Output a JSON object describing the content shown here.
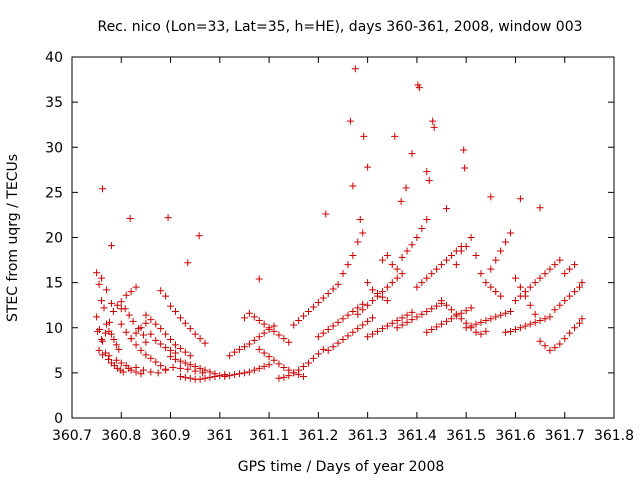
{
  "chart_data": {
    "type": "scatter",
    "title": "Rec. nico (Lon=33, Lat=35, h=HE), days 360-361, 2008, window 003",
    "xlabel": "GPS time / Days of year 2008",
    "ylabel": "STEC from uqrg / TECUs",
    "xlim": [
      360.7,
      361.8
    ],
    "ylim": [
      0,
      40
    ],
    "xticks": [
      "360.7",
      "360.8",
      "360.9",
      "361",
      "361.1",
      "361.2",
      "361.3",
      "361.4",
      "361.5",
      "361.6",
      "361.7",
      "361.8"
    ],
    "yticks": [
      "0",
      "5",
      "10",
      "15",
      "20",
      "25",
      "30",
      "35",
      "40"
    ],
    "marker": "plus",
    "grid": false,
    "color": "#cc0000",
    "x": [
      360.75,
      360.755,
      360.76,
      360.765,
      360.77,
      360.775,
      360.78,
      360.785,
      360.79,
      360.795,
      360.75,
      360.756,
      360.762,
      360.768,
      360.774,
      360.78,
      360.786,
      360.792,
      360.798,
      360.804,
      360.752,
      360.76,
      360.768,
      360.776,
      360.784,
      360.792,
      360.8,
      360.808,
      360.816,
      360.824,
      360.755,
      360.762,
      360.775,
      360.79,
      360.8,
      360.81,
      360.815,
      360.82,
      360.83,
      360.84,
      360.76,
      360.77,
      360.78,
      360.8,
      360.81,
      360.82,
      360.83,
      360.835,
      360.845,
      360.85,
      360.8,
      360.81,
      360.82,
      360.83,
      360.84,
      360.85,
      360.86,
      360.87,
      360.88,
      360.89,
      360.82,
      360.83,
      360.84,
      360.85,
      360.86,
      360.87,
      360.88,
      360.89,
      360.9,
      360.91,
      360.83,
      360.845,
      360.86,
      360.875,
      360.89,
      360.905,
      360.92,
      360.935,
      360.95,
      360.965,
      360.85,
      360.86,
      360.87,
      360.88,
      360.89,
      360.9,
      360.91,
      360.92,
      360.93,
      360.94,
      360.88,
      360.89,
      360.9,
      360.91,
      360.92,
      360.93,
      360.94,
      360.95,
      360.96,
      360.97,
      360.9,
      360.91,
      360.92,
      360.93,
      360.94,
      360.95,
      360.96,
      360.97,
      360.98,
      360.99,
      360.92,
      360.93,
      360.94,
      360.95,
      360.96,
      360.97,
      360.98,
      360.99,
      361.0,
      361.01,
      361.01,
      361.02,
      361.03,
      361.04,
      361.05,
      361.06,
      361.07,
      361.08,
      361.09,
      361.1,
      361.02,
      361.03,
      361.04,
      361.05,
      361.06,
      361.07,
      361.08,
      361.09,
      361.1,
      361.11,
      361.05,
      361.06,
      361.07,
      361.08,
      361.09,
      361.1,
      361.11,
      361.12,
      361.13,
      361.14,
      361.08,
      361.09,
      361.1,
      361.11,
      361.12,
      361.13,
      361.14,
      361.15,
      361.16,
      361.17,
      361.12,
      361.13,
      361.14,
      361.15,
      361.16,
      361.17,
      361.18,
      361.19,
      361.2,
      361.21,
      361.15,
      361.16,
      361.17,
      361.18,
      361.19,
      361.2,
      361.21,
      361.22,
      361.23,
      361.24,
      361.2,
      361.21,
      361.22,
      361.23,
      361.24,
      361.25,
      361.26,
      361.27,
      361.28,
      361.29,
      361.22,
      361.23,
      361.24,
      361.25,
      361.26,
      361.27,
      361.28,
      361.29,
      361.3,
      361.31,
      361.25,
      361.26,
      361.27,
      361.28,
      361.29,
      361.3,
      361.31,
      361.32,
      361.33,
      361.34,
      361.28,
      361.29,
      361.3,
      361.31,
      361.32,
      361.33,
      361.34,
      361.35,
      361.36,
      361.37,
      361.3,
      361.31,
      361.32,
      361.33,
      361.34,
      361.35,
      361.36,
      361.37,
      361.38,
      361.39,
      361.33,
      361.34,
      361.35,
      361.36,
      361.37,
      361.38,
      361.39,
      361.4,
      361.41,
      361.42,
      361.36,
      361.37,
      361.38,
      361.39,
      361.4,
      361.41,
      361.42,
      361.43,
      361.44,
      361.45,
      361.4,
      361.41,
      361.42,
      361.43,
      361.44,
      361.45,
      361.46,
      361.47,
      361.48,
      361.49,
      361.42,
      361.43,
      361.44,
      361.45,
      361.46,
      361.47,
      361.48,
      361.49,
      361.5,
      361.51,
      361.45,
      361.46,
      361.47,
      361.48,
      361.49,
      361.5,
      361.51,
      361.52,
      361.53,
      361.54,
      361.48,
      361.49,
      361.5,
      361.51,
      361.52,
      361.53,
      361.54,
      361.55,
      361.56,
      361.57,
      361.5,
      361.51,
      361.52,
      361.53,
      361.54,
      361.55,
      361.56,
      361.57,
      361.58,
      361.59,
      361.55,
      361.56,
      361.57,
      361.58,
      361.59,
      361.6,
      361.61,
      361.62,
      361.63,
      361.64,
      361.58,
      361.59,
      361.6,
      361.61,
      361.62,
      361.63,
      361.64,
      361.65,
      361.66,
      361.67,
      361.6,
      361.61,
      361.62,
      361.63,
      361.64,
      361.65,
      361.66,
      361.67,
      361.68,
      361.69,
      361.65,
      361.66,
      361.67,
      361.68,
      361.69,
      361.7,
      361.71,
      361.72,
      361.73,
      361.735,
      361.68,
      361.69,
      361.7,
      361.71,
      361.72,
      361.73,
      361.735,
      361.7,
      361.71,
      361.72,
      360.762,
      360.78,
      360.818,
      360.895,
      360.935,
      360.958,
      361.08,
      361.215,
      361.265,
      361.27,
      361.275,
      361.285,
      361.292,
      361.3,
      361.355,
      361.368,
      361.378,
      361.39,
      361.402,
      361.405,
      361.42,
      361.425,
      361.432,
      361.435,
      361.46,
      361.495,
      361.497,
      361.55,
      361.61,
      361.65
    ],
    "y": [
      16.1,
      14.8,
      13.0,
      12.2,
      10.4,
      9.6,
      9.3,
      8.7,
      8.1,
      7.6,
      11.2,
      9.8,
      8.5,
      7.2,
      6.5,
      6.1,
      5.8,
      5.5,
      5.3,
      5.1,
      9.6,
      8.7,
      9.4,
      10.6,
      11.8,
      12.5,
      12.9,
      12.1,
      11.4,
      10.7,
      7.5,
      7.0,
      6.9,
      6.4,
      6.1,
      5.8,
      5.5,
      5.3,
      5.1,
      4.9,
      15.5,
      14.2,
      12.7,
      12.1,
      13.6,
      14.0,
      14.5,
      9.9,
      9.2,
      8.4,
      10.4,
      9.5,
      8.8,
      8.1,
      7.5,
      7.0,
      6.6,
      6.2,
      5.8,
      5.4,
      8.8,
      9.4,
      10.0,
      10.5,
      9.3,
      8.6,
      8.2,
      7.8,
      7.5,
      7.2,
      5.6,
      5.3,
      5.1,
      5.0,
      5.3,
      5.6,
      5.5,
      5.4,
      5.2,
      5.0,
      11.4,
      10.9,
      10.4,
      9.9,
      9.3,
      8.7,
      8.1,
      7.7,
      7.3,
      6.9,
      14.1,
      13.5,
      12.4,
      11.8,
      11.1,
      10.5,
      9.9,
      9.3,
      8.8,
      8.3,
      6.8,
      6.5,
      6.3,
      6.1,
      5.9,
      5.7,
      5.5,
      5.3,
      5.1,
      4.9,
      4.6,
      4.5,
      4.4,
      4.3,
      4.3,
      4.4,
      4.5,
      4.6,
      4.7,
      4.8,
      4.6,
      4.7,
      4.8,
      4.9,
      5.0,
      5.1,
      5.3,
      5.5,
      5.7,
      5.9,
      6.9,
      7.3,
      7.6,
      7.9,
      8.2,
      8.6,
      9.0,
      9.4,
      9.8,
      10.2,
      11.1,
      11.6,
      11.2,
      10.8,
      10.4,
      10.0,
      9.6,
      9.2,
      8.8,
      8.4,
      7.6,
      7.2,
      6.8,
      6.4,
      6.0,
      5.6,
      5.3,
      5.0,
      4.8,
      4.6,
      4.4,
      4.5,
      4.7,
      5.0,
      5.3,
      5.7,
      6.1,
      6.6,
      7.1,
      7.6,
      10.3,
      10.8,
      11.3,
      11.8,
      12.3,
      12.8,
      13.3,
      13.8,
      14.3,
      14.8,
      9.0,
      9.4,
      9.8,
      10.2,
      10.6,
      11.0,
      11.4,
      11.8,
      12.2,
      12.6,
      7.5,
      7.9,
      8.3,
      8.7,
      9.1,
      9.5,
      9.9,
      10.3,
      10.7,
      11.1,
      16.0,
      17.0,
      18.0,
      19.5,
      20.5,
      15.0,
      14.2,
      13.8,
      13.4,
      13.0,
      11.5,
      12.0,
      12.5,
      13.0,
      13.5,
      14.0,
      14.5,
      15.0,
      15.5,
      16.0,
      9.0,
      9.3,
      9.6,
      9.9,
      10.2,
      10.5,
      10.8,
      11.1,
      11.4,
      11.7,
      17.5,
      18.0,
      17.0,
      16.5,
      17.8,
      18.5,
      19.2,
      20.0,
      21.0,
      22.0,
      10.0,
      10.3,
      10.6,
      10.9,
      11.2,
      11.5,
      11.8,
      12.1,
      12.4,
      12.7,
      14.5,
      15.0,
      15.5,
      16.0,
      16.5,
      17.0,
      17.5,
      18.0,
      18.5,
      19.0,
      9.5,
      9.8,
      10.1,
      10.4,
      10.7,
      11.0,
      11.3,
      11.6,
      11.9,
      12.2,
      13.0,
      12.5,
      12.0,
      11.5,
      11.0,
      10.5,
      10.0,
      9.5,
      9.3,
      9.6,
      17.0,
      18.5,
      19.0,
      20.0,
      18.0,
      16.0,
      15.0,
      14.5,
      14.0,
      13.5,
      10.0,
      10.2,
      10.4,
      10.6,
      10.8,
      11.0,
      11.2,
      11.4,
      11.6,
      11.8,
      16.5,
      17.5,
      18.5,
      19.5,
      20.5,
      15.5,
      14.5,
      13.5,
      12.5,
      11.5,
      9.5,
      9.6,
      9.8,
      10.0,
      10.2,
      10.4,
      10.6,
      10.8,
      11.0,
      11.2,
      13.0,
      13.5,
      14.0,
      14.5,
      15.0,
      15.5,
      16.0,
      16.5,
      17.0,
      17.5,
      8.5,
      8.0,
      7.5,
      7.8,
      8.2,
      8.8,
      9.4,
      10.0,
      10.5,
      11.0,
      12.0,
      12.5,
      13.0,
      13.5,
      14.0,
      14.5,
      15.0,
      16.0,
      16.5,
      17.0,
      25.4,
      19.1,
      22.1,
      22.2,
      17.2,
      20.2,
      15.4,
      22.6,
      32.9,
      25.7,
      38.7,
      22.0,
      31.2,
      27.8,
      31.2,
      24.0,
      25.5,
      29.3,
      36.9,
      36.6,
      27.3,
      26.3,
      32.9,
      32.2,
      23.2,
      29.7,
      27.7,
      24.5,
      24.3,
      23.3
    ]
  }
}
